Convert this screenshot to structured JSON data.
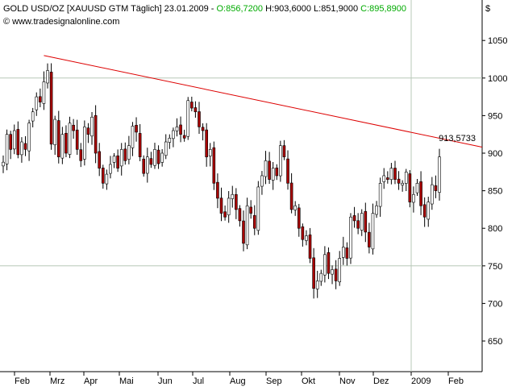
{
  "header": {
    "title": "GOLD USD/OZ [XAUUSD GTM  Täglich] 23.01.2009 - ",
    "open": "O:856,7200",
    "high": "H:903,6000",
    "low": "L:851,9000",
    "close": "C:895,8900",
    "watermark": "© www.tradesignalonline.com",
    "currency": "$"
  },
  "colors": {
    "open": "#00aa00",
    "close": "#00aa00",
    "trendline": "#dd0000",
    "up_candle": "#ffffff",
    "down_candle": "#aa0000",
    "grid": "#b8c8b8"
  },
  "chart_data": {
    "type": "candlestick",
    "title": "GOLD USD/OZ [XAUUSD GTM  Täglich] 23.01.2009",
    "x_tick_labels": [
      "Feb",
      "Mrz",
      "Apr",
      "Mai",
      "Jun",
      "Jul",
      "Aug",
      "Sep",
      "Okt",
      "Nov",
      "Dez",
      "2009",
      "Feb"
    ],
    "y_tick_labels": [
      "650",
      "700",
      "750",
      "800",
      "850",
      "900",
      "950",
      "1000",
      "1050"
    ],
    "y_ticks": [
      650,
      700,
      750,
      800,
      850,
      900,
      950,
      1000,
      1050
    ],
    "ylim": [
      622,
      1078
    ],
    "grid_lines_y": [
      750,
      1000
    ],
    "grid_line_x": "2009",
    "close_series": [
      888,
      925,
      905,
      930,
      898,
      915,
      905,
      940,
      955,
      975,
      968,
      995,
      1010,
      912,
      945,
      895,
      925,
      900,
      940,
      930,
      905,
      890,
      935,
      925,
      948,
      900,
      880,
      860,
      872,
      885,
      896,
      880,
      905,
      890,
      910,
      936,
      928,
      895,
      873,
      895,
      885,
      905,
      886,
      900,
      915,
      920,
      930,
      935,
      925,
      920,
      970,
      960,
      955,
      935,
      930,
      895,
      905,
      860,
      840,
      820,
      815,
      840,
      845,
      825,
      810,
      780,
      830,
      820,
      800,
      855,
      870,
      890,
      865,
      880,
      870,
      910,
      895,
      860,
      825,
      830,
      800,
      785,
      790,
      760,
      720,
      730,
      740,
      765,
      740,
      745,
      730,
      760,
      775,
      760,
      815,
      810,
      800,
      820,
      795,
      775,
      820,
      830,
      860,
      870,
      865,
      880,
      865,
      860,
      860,
      875,
      835,
      845,
      860,
      830,
      815,
      835,
      858,
      850,
      895
    ],
    "trendline": {
      "start_index": 11,
      "start_value": 1030,
      "end_value": 908
    },
    "trendline_label": "913,5733"
  }
}
